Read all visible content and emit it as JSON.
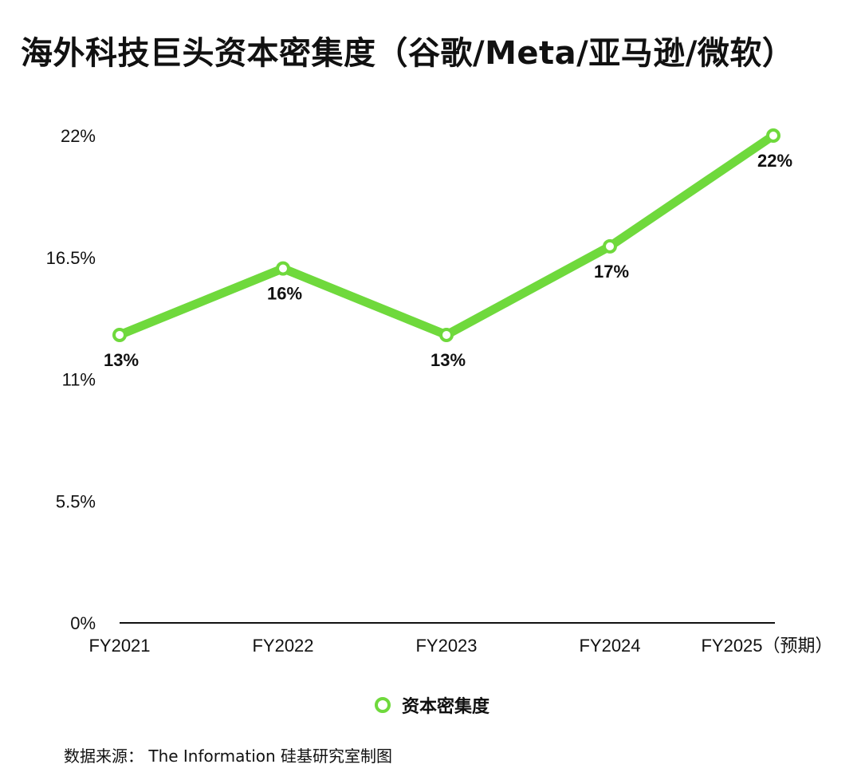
{
  "title": "海外科技巨头资本密集度（谷歌/Meta/亚马逊/微软）",
  "source": "数据来源： The Information  硅基研究室制图",
  "colors": {
    "line": "#6fd93c",
    "axis": "#111111",
    "text": "#111111"
  },
  "chart_data": {
    "type": "line",
    "title": "海外科技巨头资本密集度（谷歌/Meta/亚马逊/微软）",
    "categories": [
      "FY2021",
      "FY2022",
      "FY2023",
      "FY2024",
      "FY2025（预期）"
    ],
    "series": [
      {
        "name": "资本密集度",
        "values": [
          13,
          16,
          13,
          17,
          22
        ],
        "labels": [
          "13%",
          "16%",
          "13%",
          "17%",
          "22%"
        ]
      }
    ],
    "yticks": [
      "0%",
      "5.5%",
      "11%",
      "16.5%",
      "22%"
    ],
    "ylim": [
      0,
      22
    ],
    "grid": false,
    "legend_position": "bottom-center",
    "xlabel": "",
    "ylabel": ""
  }
}
